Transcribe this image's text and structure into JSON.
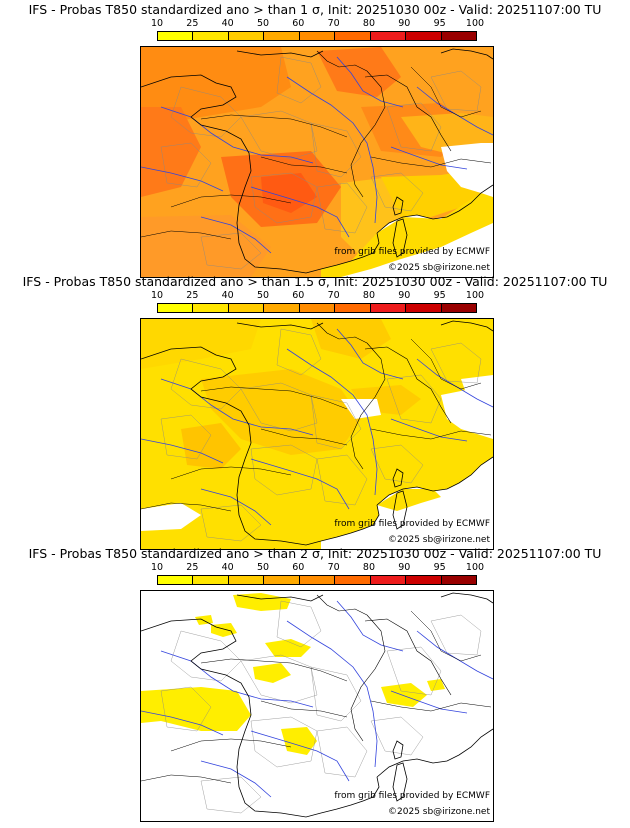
{
  "colorbar": {
    "ticks": [
      "10",
      "25",
      "40",
      "50",
      "60",
      "70",
      "80",
      "90",
      "95",
      "100"
    ],
    "colors": [
      "#ffff00",
      "#ffe600",
      "#ffcc00",
      "#ffaa00",
      "#ff8c00",
      "#ff6a00",
      "#ee1c1c",
      "#cc0000",
      "#990000"
    ]
  },
  "panels": [
    {
      "title": "IFS - Probas T850  standardized ano > than 1 σ, Init: 20251030 00z - Valid: 20251107:00 TU",
      "source": "from grib files provided by ECMWF",
      "copyright": "©2025 sb@irizone.net"
    },
    {
      "title": "IFS - Probas T850  standardized ano > than 1.5 σ, Init: 20251030 00z - Valid: 20251107:00 TU",
      "source": "from grib files provided by ECMWF",
      "copyright": "©2025 sb@irizone.net"
    },
    {
      "title": "IFS - Probas T850  standardized ano > than 2 σ, Init: 20251030 00z - Valid: 20251107:00 TU",
      "source": "from grib files provided by ECMWF",
      "copyright": "©2025 sb@irizone.net"
    }
  ]
}
